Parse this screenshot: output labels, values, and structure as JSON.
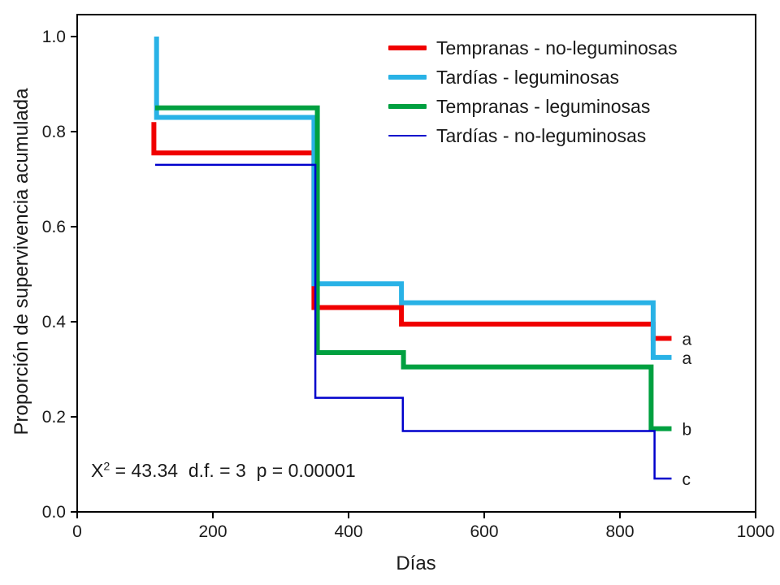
{
  "chart_data": {
    "type": "line",
    "subtype": "kaplan-meier-step-survival",
    "title": "",
    "xlabel": "Días",
    "ylabel": "Proporción de supervivencia acumulada",
    "xlim": [
      0,
      1000
    ],
    "ylim": [
      0.0,
      1.0
    ],
    "x_ticks": [
      "0",
      "200",
      "400",
      "600",
      "800",
      "1000"
    ],
    "y_ticks": [
      "0.0",
      "0.2",
      "0.4",
      "0.6",
      "0.8",
      "1.0"
    ],
    "grid": false,
    "legend_position": "top-right-inside",
    "annotation": {
      "stat": "X",
      "exponent": "2",
      "rest": " = 43.34  d.f. = 3  p = 0.00001"
    },
    "series": [
      {
        "name": "Tempranas - no-leguminosas",
        "color": "#f00000",
        "width": 6,
        "group_label": "a",
        "points": [
          [
            113,
            0.82
          ],
          [
            113,
            0.755
          ],
          [
            349,
            0.755
          ],
          [
            349,
            0.43
          ],
          [
            478,
            0.43
          ],
          [
            478,
            0.395
          ],
          [
            849,
            0.395
          ],
          [
            849,
            0.365
          ],
          [
            876,
            0.365
          ]
        ]
      },
      {
        "name": "Tardías - leguminosas",
        "color": "#29b2e6",
        "width": 6,
        "group_label": "a",
        "points": [
          [
            117,
            1.0
          ],
          [
            117,
            0.83
          ],
          [
            349,
            0.83
          ],
          [
            349,
            0.48
          ],
          [
            478,
            0.48
          ],
          [
            478,
            0.44
          ],
          [
            849,
            0.44
          ],
          [
            849,
            0.325
          ],
          [
            876,
            0.325
          ]
        ]
      },
      {
        "name": "Tempranas - leguminosas",
        "color": "#00a040",
        "width": 6,
        "group_label": "b",
        "points": [
          [
            115,
            0.85
          ],
          [
            354,
            0.85
          ],
          [
            354,
            0.335
          ],
          [
            481,
            0.335
          ],
          [
            481,
            0.305
          ],
          [
            846,
            0.305
          ],
          [
            846,
            0.175
          ],
          [
            876,
            0.175
          ]
        ]
      },
      {
        "name": "Tardías - no-leguminosas",
        "color": "#0000cc",
        "width": 2.5,
        "group_label": "c",
        "points": [
          [
            115,
            0.73
          ],
          [
            351,
            0.73
          ],
          [
            351,
            0.24
          ],
          [
            480,
            0.24
          ],
          [
            480,
            0.17
          ],
          [
            851,
            0.17
          ],
          [
            851,
            0.07
          ],
          [
            876,
            0.07
          ]
        ]
      }
    ]
  }
}
